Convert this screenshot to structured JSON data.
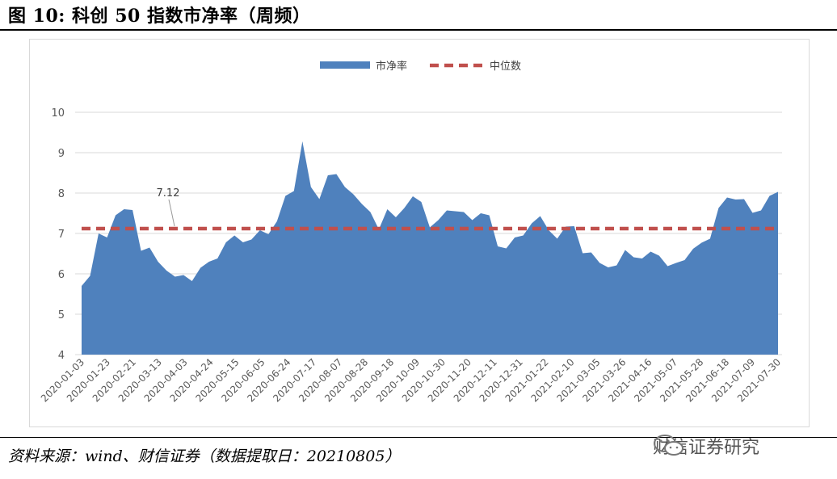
{
  "figure_title": "图 10:  科创 50 指数市净率（周频）",
  "source": "资料来源：wind、财信证券（数据提取日：20210805）",
  "watermark": "财信证券研究",
  "chart_data": {
    "type": "area",
    "legend": [
      "市净率",
      "中位数"
    ],
    "legend_position": "top-center",
    "grid": true,
    "ylim": [
      4,
      10
    ],
    "yticks": [
      "4",
      "5",
      "6",
      "7",
      "8",
      "9",
      "10"
    ],
    "xtick_labels": [
      "2020-01-03",
      "2020-01-23",
      "2020-02-21",
      "2020-03-13",
      "2020-04-03",
      "2020-04-24",
      "2020-05-15",
      "2020-06-05",
      "2020-06-24",
      "2020-07-17",
      "2020-08-07",
      "2020-08-28",
      "2020-09-18",
      "2020-10-09",
      "2020-10-30",
      "2020-11-20",
      "2020-12-11",
      "2020-12-31",
      "2021-01-22",
      "2021-02-10",
      "2021-03-05",
      "2021-03-26",
      "2021-04-16",
      "2021-05-07",
      "2021-05-28",
      "2021-06-18",
      "2021-07-09",
      "2021-07-30"
    ],
    "series": [
      {
        "name": "市净率",
        "color": "#4f81bd",
        "values": [
          5.7,
          5.95,
          7.0,
          6.9,
          7.45,
          7.6,
          7.58,
          6.57,
          6.65,
          6.3,
          6.08,
          5.93,
          5.97,
          5.82,
          6.15,
          6.3,
          6.38,
          6.78,
          6.95,
          6.78,
          6.85,
          7.08,
          6.98,
          7.3,
          7.93,
          8.05,
          9.28,
          8.15,
          7.85,
          8.44,
          8.47,
          8.15,
          7.97,
          7.73,
          7.53,
          7.1,
          7.6,
          7.4,
          7.63,
          7.92,
          7.78,
          7.15,
          7.33,
          7.57,
          7.55,
          7.53,
          7.33,
          7.5,
          7.45,
          6.68,
          6.63,
          6.9,
          6.95,
          7.25,
          7.43,
          7.08,
          6.87,
          7.17,
          7.18,
          6.51,
          6.53,
          6.27,
          6.16,
          6.21,
          6.59,
          6.41,
          6.38,
          6.55,
          6.45,
          6.19,
          6.27,
          6.34,
          6.62,
          6.77,
          6.87,
          7.63,
          7.89,
          7.84,
          7.85,
          7.51,
          7.57,
          7.93,
          8.03
        ]
      },
      {
        "name": "中位数",
        "color": "#c0504d",
        "value": 7.12,
        "style": "dashed"
      }
    ],
    "annotation": "7.12"
  }
}
